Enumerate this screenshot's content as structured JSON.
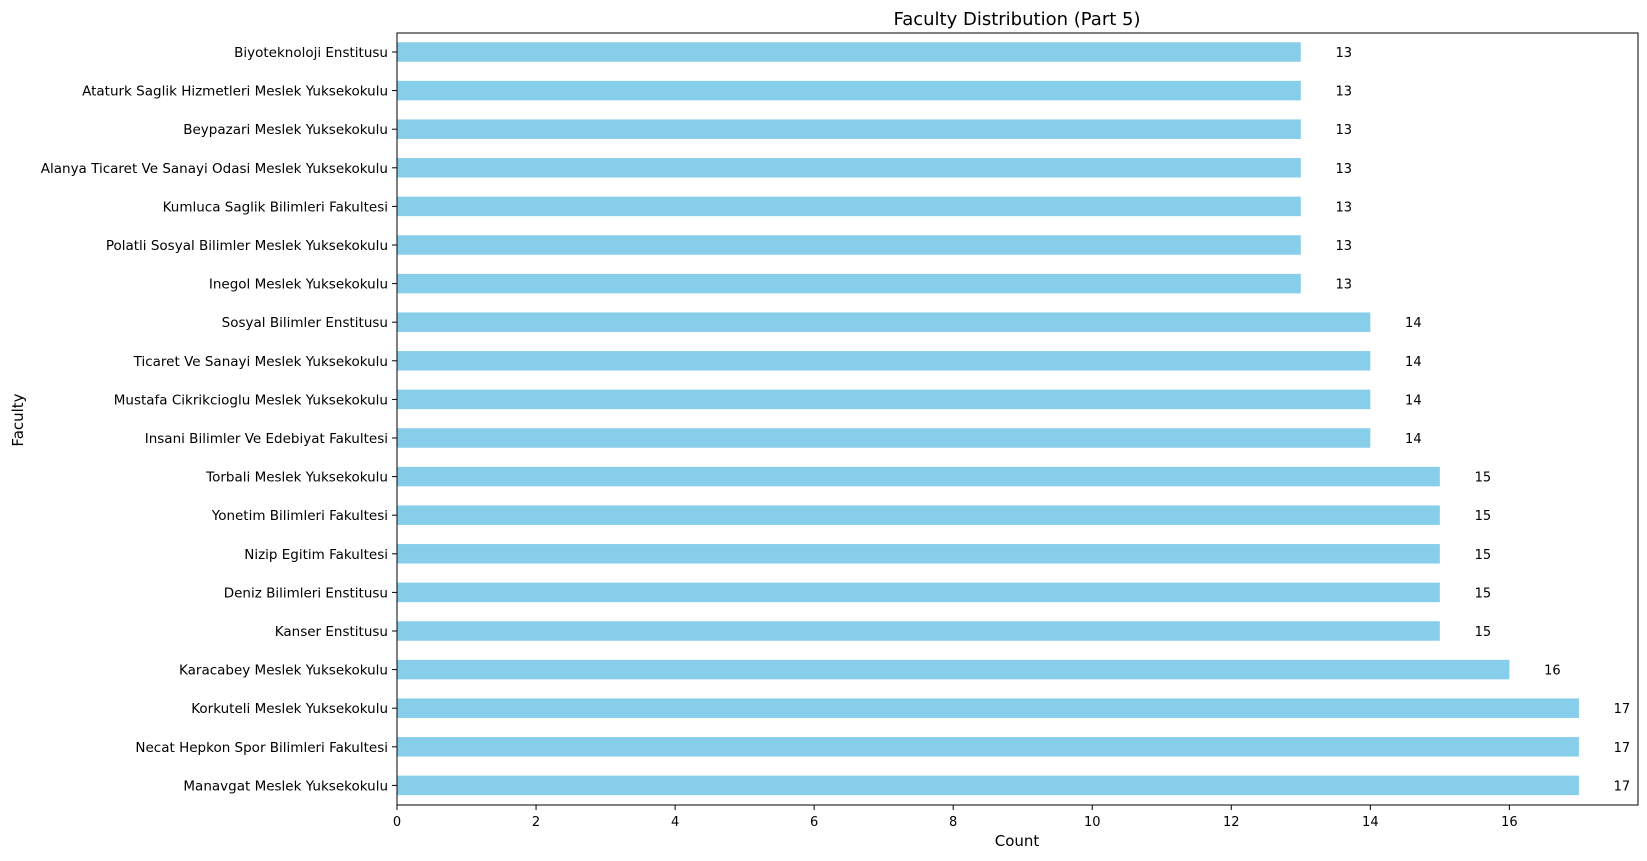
{
  "chart_data": {
    "type": "bar",
    "orientation": "horizontal",
    "title": "Faculty Distribution (Part 5)",
    "xlabel": "Count",
    "ylabel": "Faculty",
    "xlim": [
      0,
      17.85
    ],
    "xticks": [
      0,
      2,
      4,
      6,
      8,
      10,
      12,
      14,
      16
    ],
    "grid": false,
    "bar_color": "#87CEEB",
    "categories": [
      "Biyoteknoloji Enstitusu",
      "Ataturk Saglik Hizmetleri Meslek Yuksekokulu",
      "Beypazari Meslek Yuksekokulu",
      "Alanya Ticaret Ve Sanayi Odasi Meslek Yuksekokulu",
      "Kumluca Saglik Bilimleri Fakultesi",
      "Polatli Sosyal Bilimler Meslek Yuksekokulu",
      "Inegol Meslek Yuksekokulu",
      "Sosyal Bilimler Enstitusu",
      "Ticaret Ve Sanayi Meslek Yuksekokulu",
      "Mustafa Cikrikcioglu Meslek Yuksekokulu",
      "Insani Bilimler Ve Edebiyat Fakultesi",
      "Torbali Meslek Yuksekokulu",
      "Yonetim Bilimleri Fakultesi",
      "Nizip Egitim Fakultesi",
      "Deniz Bilimleri Enstitusu",
      "Kanser Enstitusu",
      "Karacabey Meslek Yuksekokulu",
      "Korkuteli Meslek Yuksekokulu",
      "Necat Hepkon Spor Bilimleri Fakultesi",
      "Manavgat Meslek Yuksekokulu"
    ],
    "values": [
      13,
      13,
      13,
      13,
      13,
      13,
      13,
      14,
      14,
      14,
      14,
      15,
      15,
      15,
      15,
      15,
      16,
      17,
      17,
      17
    ],
    "value_labels": [
      "13",
      "13",
      "13",
      "13",
      "13",
      "13",
      "13",
      "14",
      "14",
      "14",
      "14",
      "15",
      "15",
      "15",
      "15",
      "15",
      "16",
      "17",
      "17",
      "17"
    ]
  }
}
